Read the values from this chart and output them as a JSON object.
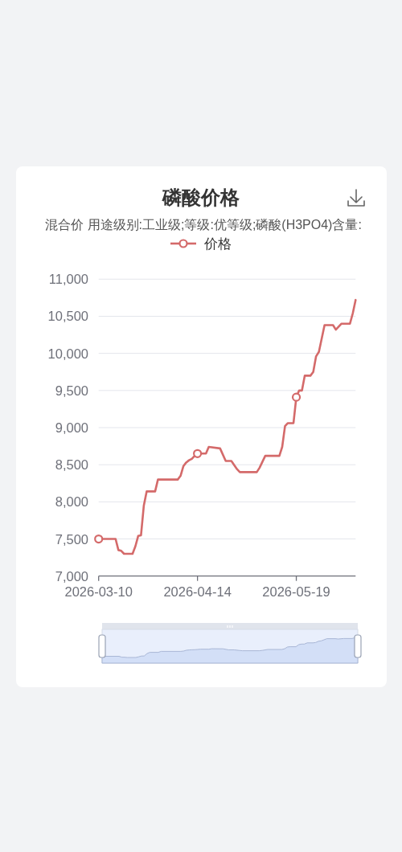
{
  "chart_data": {
    "type": "line",
    "title": "磷酸价格",
    "subtitle": "混合价 用途级别:工业级;等级:优等级;磷酸(H3PO4)含量:",
    "x": [
      "2026-03-10",
      "2026-03-16",
      "2026-03-17",
      "2026-03-18",
      "2026-03-19",
      "2026-03-22",
      "2026-03-23",
      "2026-03-24",
      "2026-03-25",
      "2026-03-26",
      "2026-03-27",
      "2026-03-30",
      "2026-03-31",
      "2026-04-07",
      "2026-04-08",
      "2026-04-09",
      "2026-04-10",
      "2026-04-11",
      "2026-04-12",
      "2026-04-13",
      "2026-04-14",
      "2026-04-17",
      "2026-04-18",
      "2026-04-22",
      "2026-04-24",
      "2026-04-26",
      "2026-04-28",
      "2026-04-29",
      "2026-05-05",
      "2026-05-06",
      "2026-05-08",
      "2026-05-13",
      "2026-05-14",
      "2026-05-15",
      "2026-05-16",
      "2026-05-18",
      "2026-05-19",
      "2026-05-20",
      "2026-05-21",
      "2026-05-22",
      "2026-05-24",
      "2026-05-25",
      "2026-05-26",
      "2026-05-27",
      "2026-05-29",
      "2026-06-01",
      "2026-06-02",
      "2026-06-04",
      "2026-06-07",
      "2026-06-08",
      "2026-06-09"
    ],
    "series": [
      {
        "name": "价格",
        "color": "#d46a6a",
        "values": [
          7500,
          7500,
          7350,
          7340,
          7300,
          7300,
          7400,
          7540,
          7550,
          7950,
          8140,
          8140,
          8300,
          8300,
          8350,
          8480,
          8530,
          8560,
          8580,
          8620,
          8650,
          8650,
          8740,
          8720,
          8550,
          8550,
          8440,
          8400,
          8400,
          8460,
          8620,
          8620,
          8740,
          9020,
          9060,
          9060,
          9410,
          9500,
          9500,
          9700,
          9700,
          9750,
          9960,
          10020,
          10380,
          10380,
          10320,
          10400,
          10400,
          10540,
          10720
        ]
      },
      {
        "type": "scatter",
        "color": "#d46a6a",
        "marker": "circle",
        "x": [
          "2026-03-10",
          "2026-04-14",
          "2026-05-19"
        ],
        "values": [
          7500,
          8650,
          9410
        ]
      }
    ],
    "xlim": [
      "2026-03-10",
      "2026-06-09"
    ],
    "xticks": [
      "2026-03-10",
      "2026-04-14",
      "2026-05-19"
    ],
    "ylim": [
      7000,
      11000
    ],
    "yticks": [
      {
        "value": 7000,
        "label": "7,000"
      },
      {
        "value": 7500,
        "label": "7,500"
      },
      {
        "value": 8000,
        "label": "8,000"
      },
      {
        "value": 8500,
        "label": "8,500"
      },
      {
        "value": 9000,
        "label": "9,000"
      },
      {
        "value": 9500,
        "label": "9,500"
      },
      {
        "value": 10000,
        "label": "10,000"
      },
      {
        "value": 10500,
        "label": "10,500"
      },
      {
        "value": 11000,
        "label": "11,000"
      }
    ],
    "grid": "y",
    "legend": "top"
  }
}
